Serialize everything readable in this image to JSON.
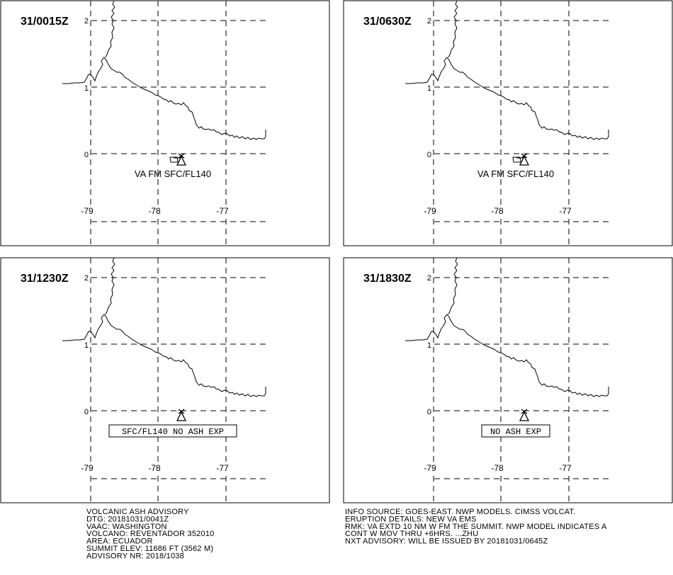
{
  "panels": [
    {
      "time": "31/0015Z",
      "lat_ticks": [
        "2",
        "1",
        "0"
      ],
      "lon_ticks": [
        "-79",
        "-78",
        "-77"
      ],
      "label": "VA FM SFC/FL140",
      "label_boxed": false,
      "plume_shown": true
    },
    {
      "time": "31/0630Z",
      "lat_ticks": [
        "2",
        "1",
        "0"
      ],
      "lon_ticks": [
        "-79",
        "-78",
        "-77"
      ],
      "label": "VA FM SFC/FL140",
      "label_boxed": false,
      "plume_shown": true
    },
    {
      "time": "31/1230Z",
      "lat_ticks": [
        "2",
        "1",
        "0"
      ],
      "lon_ticks": [
        "-79",
        "-78",
        "-77"
      ],
      "label": "SFC/FL140 NO ASH EXP",
      "label_boxed": true,
      "plume_shown": false
    },
    {
      "time": "31/1830Z",
      "lat_ticks": [
        "2",
        "1",
        "0"
      ],
      "lon_ticks": [
        "-79",
        "-78",
        "-77"
      ],
      "label": "NO ASH EXP",
      "label_boxed": true,
      "plume_shown": false
    }
  ],
  "advisory": {
    "left": [
      "VOLCANIC ASH ADVISORY",
      "DTG: 20181031/0041Z",
      "VAAC: WASHINGTON",
      "VOLCANO: REVENTADOR 352010",
      "AREA: ECUADOR",
      "SUMMIT ELEV: 11686 FT (3562 M)",
      "ADVISORY NR: 2018/1038"
    ],
    "right": [
      "INFO SOURCE: GOES-EAST. NWP MODELS. CIMSS VOLCAT.",
      "ERUPTION DETAILS: NEW VA EMS",
      "RMK: VA EXTD 10 NM W FM THE SUMMIT. NWP MODEL INDICATES A",
      "CONT W MOV THRU +6HRS. ...ZHU",
      "NXT ADVISORY: WILL BE ISSUED BY 20181031/0645Z"
    ]
  },
  "colors": {
    "ink": "#000000",
    "background": "#ffffff"
  },
  "icons": [
    "volcano-icon"
  ]
}
